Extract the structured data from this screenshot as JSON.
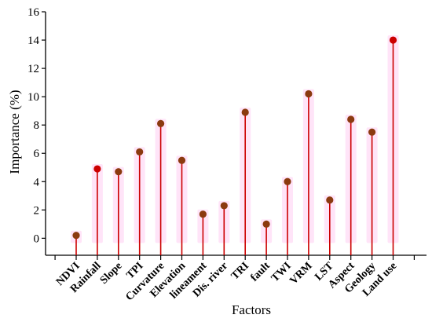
{
  "chart_data": {
    "type": "lollipop",
    "title": "",
    "xlabel": "Factors",
    "ylabel": "Importance (%)",
    "ylim": [
      -1.2,
      16
    ],
    "yticks": [
      0,
      2,
      4,
      6,
      8,
      10,
      12,
      14,
      16
    ],
    "categories": [
      "NDVI",
      "Rainfall",
      "Slope",
      "TPI",
      "Curvature",
      "Elevation",
      "lineament",
      "Dis. river",
      "TRI",
      "fault",
      "TWI",
      "VRM",
      "LST",
      "Aspect",
      "Geology",
      "Land use"
    ],
    "values": [
      0.2,
      4.9,
      4.7,
      6.1,
      8.1,
      5.5,
      1.7,
      2.3,
      8.9,
      1.0,
      4.0,
      10.2,
      2.7,
      8.4,
      7.5,
      14.0
    ],
    "colors": {
      "stem": "#cc0000",
      "dot_default": "#8b3a0f",
      "dot_highlight": "#cc0000",
      "glow": "#ff9de6"
    },
    "highlighted": [
      "Rainfall",
      "Land use"
    ],
    "grid": false,
    "legend": "none"
  }
}
